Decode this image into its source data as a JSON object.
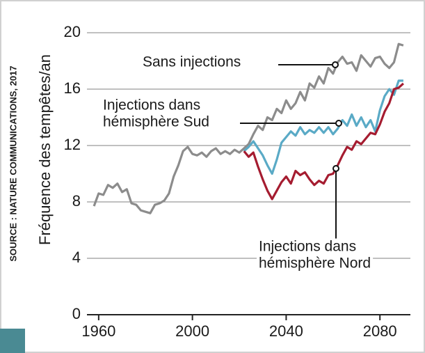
{
  "chart_data": {
    "type": "line",
    "source": "SOURCE : NATURE COMMUNICATIONS, 2017",
    "y_label": "Fréquence des tempêtes/an",
    "xlim": [
      1955,
      2093
    ],
    "xticks": [
      1960,
      2000,
      2040,
      2080
    ],
    "ylim": [
      0,
      20
    ],
    "yticks": [
      0,
      4,
      8,
      12,
      16,
      20
    ],
    "grid": true,
    "series": [
      {
        "name": "Sans injections",
        "color": "#8c8c8c",
        "x": [
          1958,
          1960,
          1962,
          1964,
          1966,
          1968,
          1970,
          1972,
          1974,
          1976,
          1978,
          1980,
          1982,
          1984,
          1986,
          1988,
          1990,
          1992,
          1994,
          1996,
          1998,
          2000,
          2002,
          2004,
          2006,
          2008,
          2010,
          2012,
          2014,
          2016,
          2018,
          2020,
          2022,
          2024,
          2026,
          2028,
          2030,
          2032,
          2034,
          2036,
          2038,
          2040,
          2042,
          2044,
          2046,
          2048,
          2050,
          2052,
          2054,
          2056,
          2058,
          2060,
          2062,
          2064,
          2066,
          2068,
          2070,
          2072,
          2074,
          2076,
          2078,
          2080,
          2082,
          2084,
          2086,
          2088,
          2090
        ],
        "values": [
          7.7,
          8.6,
          8.5,
          9.2,
          9.0,
          9.3,
          8.7,
          8.9,
          7.9,
          7.8,
          7.4,
          7.3,
          7.2,
          7.8,
          7.9,
          8.1,
          8.6,
          9.8,
          10.6,
          11.6,
          11.9,
          11.4,
          11.3,
          11.5,
          11.2,
          11.6,
          11.8,
          11.4,
          11.6,
          11.4,
          11.7,
          11.5,
          11.8,
          12.1,
          12.8,
          13.4,
          13.1,
          14.0,
          13.8,
          14.6,
          14.3,
          15.2,
          14.6,
          15.0,
          15.8,
          15.2,
          16.4,
          16.1,
          16.9,
          16.4,
          17.5,
          17.1,
          17.9,
          18.3,
          17.8,
          17.9,
          17.3,
          18.4,
          18.0,
          17.6,
          18.2,
          18.3,
          17.8,
          17.5,
          17.9,
          19.2,
          19.1
        ]
      },
      {
        "name": [
          "Injections dans",
          "hémisphère Sud"
        ],
        "color": "#5aaac6",
        "x": [
          2022,
          2024,
          2026,
          2028,
          2030,
          2032,
          2034,
          2036,
          2038,
          2040,
          2042,
          2044,
          2046,
          2048,
          2050,
          2052,
          2054,
          2056,
          2058,
          2060,
          2062,
          2064,
          2066,
          2068,
          2070,
          2072,
          2074,
          2076,
          2078,
          2080,
          2082,
          2084,
          2086,
          2088,
          2090
        ],
        "values": [
          11.6,
          11.9,
          12.3,
          11.8,
          11.3,
          10.6,
          10.0,
          11.0,
          12.2,
          12.6,
          13.0,
          12.7,
          13.3,
          12.8,
          13.1,
          12.9,
          13.3,
          12.9,
          13.3,
          12.8,
          13.2,
          13.8,
          13.4,
          14.2,
          13.4,
          14.0,
          13.3,
          13.8,
          13.0,
          14.5,
          15.5,
          16.0,
          15.6,
          16.6,
          16.6
        ]
      },
      {
        "name": [
          "Injections dans",
          "hémisphère Nord"
        ],
        "color": "#a51c30",
        "x": [
          2022,
          2024,
          2026,
          2028,
          2030,
          2032,
          2034,
          2036,
          2038,
          2040,
          2042,
          2044,
          2046,
          2048,
          2050,
          2052,
          2054,
          2056,
          2058,
          2060,
          2062,
          2064,
          2066,
          2068,
          2070,
          2072,
          2074,
          2076,
          2078,
          2080,
          2082,
          2084,
          2086,
          2088,
          2090
        ],
        "values": [
          11.6,
          11.2,
          11.5,
          10.5,
          9.6,
          8.8,
          8.2,
          8.8,
          9.4,
          9.8,
          9.3,
          10.2,
          9.9,
          10.1,
          9.6,
          9.2,
          9.5,
          9.3,
          9.9,
          10.0,
          10.6,
          11.3,
          11.9,
          11.7,
          12.3,
          12.1,
          12.5,
          12.9,
          12.8,
          13.5,
          14.4,
          15.0,
          16.0,
          16.1,
          16.4
        ]
      }
    ]
  }
}
